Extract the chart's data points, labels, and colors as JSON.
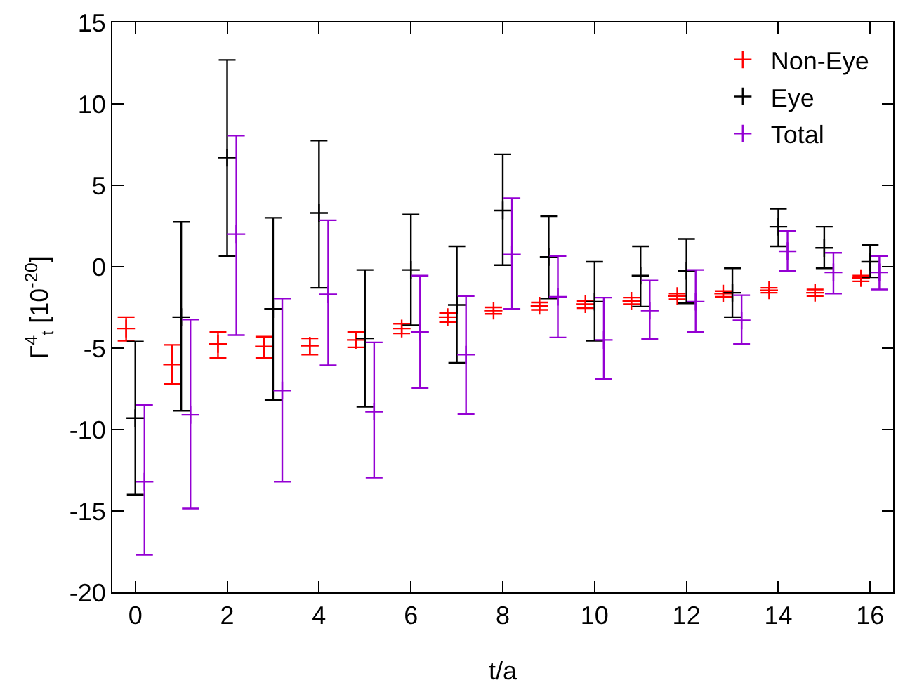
{
  "chart_data": {
    "type": "scatter",
    "xlabel": "t/a",
    "ylabel": "Γ$^{4}$$_{t}$ [10$^{-20}$]",
    "xlim": [
      -0.5,
      16.5
    ],
    "xticks": [
      0,
      2,
      4,
      6,
      8,
      10,
      12,
      14,
      16
    ],
    "ylim": [
      -20,
      15
    ],
    "yticks": [
      -20,
      -15,
      -10,
      -5,
      0,
      5,
      10,
      15
    ],
    "grid": false,
    "legend": "top right",
    "marker": "cross",
    "series": [
      {
        "name": "Non-Eye",
        "color": "#ff0000",
        "x": [
          -0.2,
          0.8,
          1.8,
          2.8,
          3.8,
          4.8,
          5.8,
          6.8,
          7.8,
          8.8,
          9.8,
          10.8,
          11.8,
          12.8,
          13.8,
          14.8,
          15.8
        ],
        "values": [
          -3.8,
          -6.0,
          -4.75,
          -4.9,
          -4.85,
          -4.5,
          -3.8,
          -3.1,
          -2.7,
          -2.4,
          -2.3,
          -2.1,
          -1.8,
          -1.65,
          -1.45,
          -1.6,
          -0.7
        ],
        "errors": [
          [
            -4.55,
            -3.1
          ],
          [
            -7.2,
            -4.8
          ],
          [
            -5.6,
            -4.0
          ],
          [
            -5.6,
            -4.3
          ],
          [
            -5.4,
            -4.4
          ],
          [
            -4.95,
            -4.0
          ],
          [
            -4.1,
            -3.5
          ],
          [
            -3.4,
            -2.85
          ],
          [
            -2.9,
            -2.5
          ],
          [
            -2.65,
            -2.2
          ],
          [
            -2.55,
            -2.1
          ],
          [
            -2.3,
            -1.9
          ],
          [
            -2.0,
            -1.65
          ],
          [
            -1.85,
            -1.5
          ],
          [
            -1.6,
            -1.3
          ],
          [
            -1.8,
            -1.4
          ],
          [
            -0.9,
            -0.55
          ]
        ]
      },
      {
        "name": "Eye",
        "color": "#000000",
        "x": [
          0,
          1,
          2,
          3,
          4,
          5,
          6,
          7,
          8,
          9,
          10,
          11,
          12,
          13,
          14,
          15,
          16
        ],
        "values": [
          -9.3,
          -3.1,
          6.7,
          -2.6,
          3.3,
          -4.4,
          -0.2,
          -2.35,
          3.45,
          0.6,
          -2.15,
          -0.55,
          -0.25,
          -1.6,
          2.45,
          1.15,
          0.3
        ],
        "errors": [
          [
            -14.0,
            -4.6
          ],
          [
            -8.85,
            2.75
          ],
          [
            0.65,
            12.7
          ],
          [
            -8.2,
            3.0
          ],
          [
            -1.3,
            7.75
          ],
          [
            -8.6,
            -0.2
          ],
          [
            -3.6,
            3.2
          ],
          [
            -5.9,
            1.25
          ],
          [
            0.1,
            6.9
          ],
          [
            -1.95,
            3.1
          ],
          [
            -4.55,
            0.3
          ],
          [
            -2.45,
            1.25
          ],
          [
            -2.25,
            1.7
          ],
          [
            -3.1,
            -0.1
          ],
          [
            1.25,
            3.55
          ],
          [
            -0.1,
            2.45
          ],
          [
            -0.65,
            1.35
          ]
        ]
      },
      {
        "name": "Total",
        "color": "#9400d3",
        "x": [
          0.2,
          1.2,
          2.2,
          3.2,
          4.2,
          5.2,
          6.2,
          7.2,
          8.2,
          9.2,
          10.2,
          11.2,
          12.2,
          13.2,
          14.2,
          15.2,
          16.2
        ],
        "values": [
          -13.2,
          -9.1,
          2.0,
          -7.6,
          -1.7,
          -8.9,
          -4.0,
          -5.4,
          0.75,
          -1.85,
          -4.5,
          -2.7,
          -2.15,
          -3.3,
          0.95,
          -0.35,
          -0.35
        ],
        "errors": [
          [
            -17.7,
            -8.5
          ],
          [
            -14.85,
            -3.25
          ],
          [
            -4.2,
            8.05
          ],
          [
            -13.2,
            -1.95
          ],
          [
            -6.05,
            2.85
          ],
          [
            -12.95,
            -4.65
          ],
          [
            -7.45,
            -0.55
          ],
          [
            -9.05,
            -1.8
          ],
          [
            -2.6,
            4.2
          ],
          [
            -4.35,
            0.65
          ],
          [
            -6.9,
            -1.9
          ],
          [
            -4.45,
            -0.85
          ],
          [
            -4.0,
            -0.2
          ],
          [
            -4.75,
            -1.75
          ],
          [
            -0.25,
            2.2
          ],
          [
            -1.65,
            0.85
          ],
          [
            -1.4,
            0.65
          ]
        ]
      }
    ]
  }
}
